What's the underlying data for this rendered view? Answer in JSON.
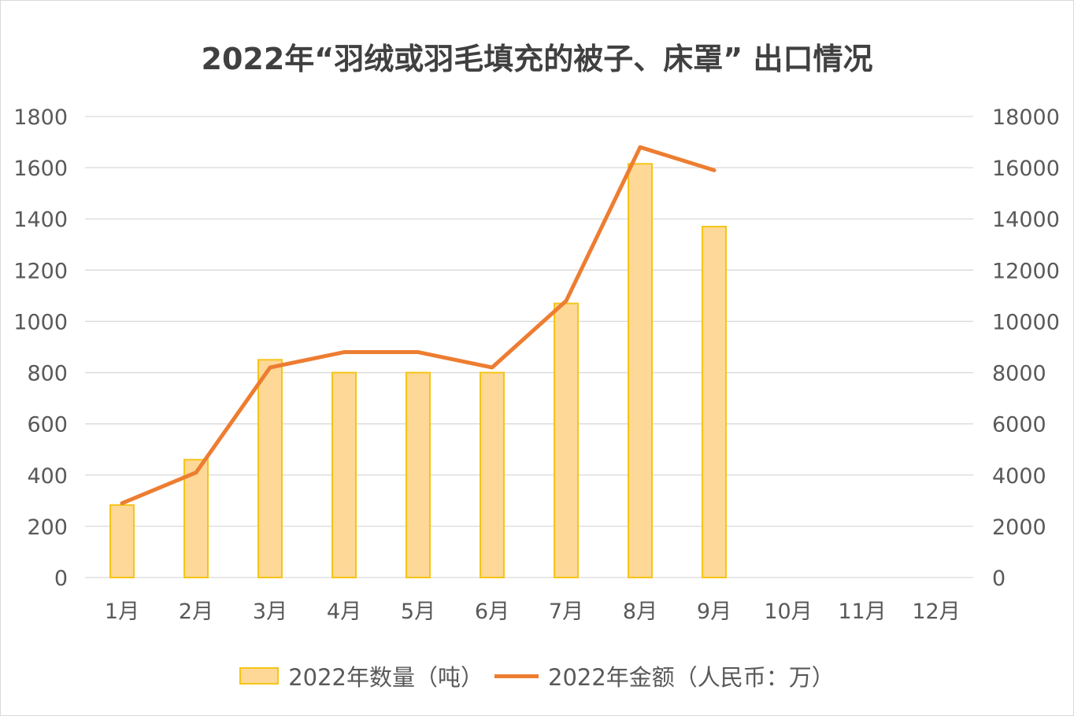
{
  "chart_data": {
    "type": "bar+line",
    "title": "2022年“羽绒或羽毛填充的被子、床罩” 出口情况",
    "categories": [
      "1月",
      "2月",
      "3月",
      "4月",
      "5月",
      "6月",
      "7月",
      "8月",
      "9月",
      "10月",
      "11月",
      "12月"
    ],
    "series": [
      {
        "name": "2022年数量（吨）",
        "type": "bar",
        "axis": "left",
        "values": [
          283,
          460,
          850,
          800,
          800,
          800,
          1070,
          1615,
          1370,
          null,
          null,
          null
        ]
      },
      {
        "name": "2022年金额（人民币：万）",
        "type": "line",
        "axis": "right",
        "values": [
          2900,
          4100,
          8200,
          8800,
          8800,
          8200,
          10800,
          16800,
          15900,
          null,
          null,
          null
        ]
      }
    ],
    "y_left": {
      "range": [
        0,
        1800
      ],
      "ticks": [
        "0",
        "200",
        "400",
        "600",
        "800",
        "1000",
        "1200",
        "1400",
        "1600",
        "1800"
      ]
    },
    "y_right": {
      "range": [
        0,
        18000
      ],
      "ticks": [
        "0",
        "2000",
        "4000",
        "6000",
        "8000",
        "10000",
        "12000",
        "14000",
        "16000",
        "18000"
      ]
    },
    "grid": true,
    "legend_position": "bottom",
    "colors": {
      "bar_fill": "#fdd897",
      "bar_border": "#f5c518",
      "line": "#ed7d31",
      "grid": "#d9d9d9"
    }
  }
}
